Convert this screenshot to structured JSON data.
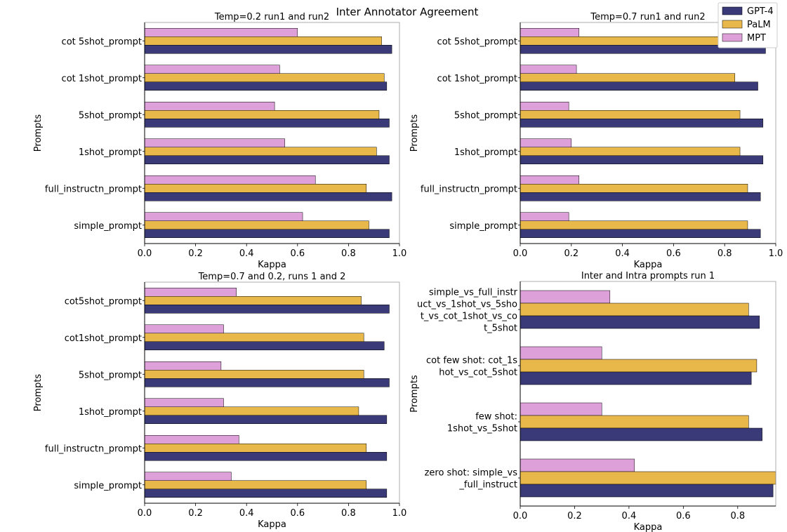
{
  "figure": {
    "title": "Inter Annotator Agreement"
  },
  "colors": {
    "GPT-4": "#3a3a78",
    "PaLM": "#e8b84a",
    "MPT": "#dda0d8"
  },
  "legend": {
    "placement": "top-right",
    "entries": [
      "GPT-4",
      "PaLM",
      "MPT"
    ]
  },
  "chart_data": [
    {
      "type": "bar",
      "orientation": "horizontal",
      "title": "Temp=0.2 run1 and run2",
      "xlabel": "Kappa",
      "ylabel": "Prompts",
      "xlim": [
        0,
        1.0
      ],
      "xticks": [
        "0.0",
        "0.2",
        "0.4",
        "0.6",
        "0.8",
        "1.0"
      ],
      "categories": [
        "cot 5shot_prompt",
        "cot 1shot_prompt",
        "5shot_prompt",
        "1shot_prompt",
        "full_instructn_prompt",
        "simple_prompt"
      ],
      "series": [
        {
          "name": "MPT",
          "values": [
            0.6,
            0.53,
            0.51,
            0.55,
            0.67,
            0.62
          ]
        },
        {
          "name": "PaLM",
          "values": [
            0.93,
            0.94,
            0.92,
            0.91,
            0.87,
            0.88
          ]
        },
        {
          "name": "GPT-4",
          "values": [
            0.97,
            0.95,
            0.96,
            0.96,
            0.97,
            0.96
          ]
        }
      ],
      "grid": false
    },
    {
      "type": "bar",
      "orientation": "horizontal",
      "title": "Temp=0.7 run1 and run2",
      "xlabel": "Kappa",
      "ylabel": "Prompts",
      "xlim": [
        0,
        1.0
      ],
      "xticks": [
        "0.0",
        "0.2",
        "0.4",
        "0.6",
        "0.8",
        "1.0"
      ],
      "categories": [
        "cot 5shot_prompt",
        "cot 1shot_prompt",
        "5shot_prompt",
        "1shot_prompt",
        "full_instructn_prompt",
        "simple_prompt"
      ],
      "series": [
        {
          "name": "MPT",
          "values": [
            0.23,
            0.22,
            0.19,
            0.2,
            0.23,
            0.19
          ]
        },
        {
          "name": "PaLM",
          "values": [
            0.9,
            0.84,
            0.86,
            0.86,
            0.89,
            0.89
          ]
        },
        {
          "name": "GPT-4",
          "values": [
            0.96,
            0.93,
            0.95,
            0.95,
            0.94,
            0.94
          ]
        }
      ],
      "grid": false
    },
    {
      "type": "bar",
      "orientation": "horizontal",
      "title": "Temp=0.7 and 0.2, runs 1 and 2",
      "xlabel": "Kappa",
      "ylabel": "Prompts",
      "xlim": [
        0,
        1.0
      ],
      "xticks": [
        "0.0",
        "0.2",
        "0.4",
        "0.6",
        "0.8",
        "1.0"
      ],
      "categories": [
        "cot5shot_prompt",
        "cot1shot_prompt",
        "5shot_prompt",
        "1shot_prompt",
        "full_instructn_prompt",
        "simple_prompt"
      ],
      "series": [
        {
          "name": "MPT",
          "values": [
            0.36,
            0.31,
            0.3,
            0.31,
            0.37,
            0.34
          ]
        },
        {
          "name": "PaLM",
          "values": [
            0.85,
            0.86,
            0.86,
            0.84,
            0.87,
            0.87
          ]
        },
        {
          "name": "GPT-4",
          "values": [
            0.96,
            0.94,
            0.96,
            0.95,
            0.95,
            0.95
          ]
        }
      ],
      "grid": false
    },
    {
      "type": "bar",
      "orientation": "horizontal",
      "title": "Inter and Intra prompts run 1",
      "xlabel": "Kappa",
      "ylabel": "Prompts",
      "xlim": [
        0,
        0.94
      ],
      "xticks": [
        "0.0",
        "0.2",
        "0.4",
        "0.6",
        "0.8"
      ],
      "categories": [
        [
          "simple_vs_full_instr",
          "uct_vs_1shot_vs_5sho",
          "t_vs_cot_1shot_vs_co",
          "t_5shot"
        ],
        [
          "cot few shot: cot_1s",
          "hot_vs_cot_5shot"
        ],
        [
          "few shot:",
          "1shot_vs_5shot"
        ],
        [
          "zero shot: simple_vs",
          "_full_instruct"
        ]
      ],
      "series": [
        {
          "name": "MPT",
          "values": [
            0.33,
            0.3,
            0.3,
            0.42
          ]
        },
        {
          "name": "PaLM",
          "values": [
            0.84,
            0.87,
            0.84,
            0.94
          ]
        },
        {
          "name": "GPT-4",
          "values": [
            0.88,
            0.85,
            0.89,
            0.93
          ]
        }
      ],
      "grid": false
    }
  ]
}
